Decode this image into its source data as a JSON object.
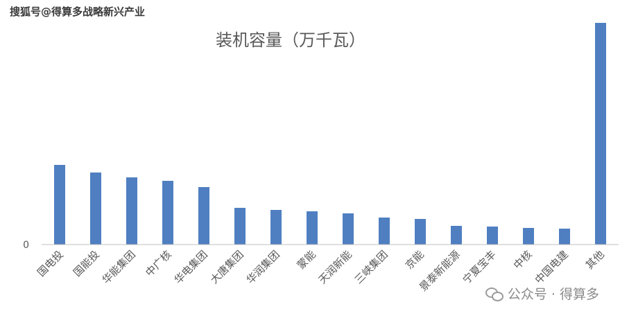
{
  "watermark": {
    "top_text": "搜狐号@得算多战略新兴产业",
    "bottom_text": "公众号 · 得算多",
    "icon": "wechat-icon"
  },
  "colors": {
    "bar": "#4F7FC1",
    "axis": "#bfbfbf",
    "title": "#595959",
    "tick": "#595959"
  },
  "chart_data": {
    "type": "bar",
    "title": "装机容量（万千瓦）",
    "xlabel": "",
    "ylabel": "",
    "ylim": [
      0,
      320
    ],
    "grid": false,
    "y_ticks": [
      {
        "value": 0,
        "label": "0"
      }
    ],
    "categories": [
      "国电投",
      "国能投",
      "华能集团",
      "中广核",
      "华电集团",
      "大唐集团",
      "华润集团",
      "蒙能",
      "天润新能",
      "三峡集团",
      "京能",
      "景泰新能源",
      "宁夏宝丰",
      "中核",
      "中国电建",
      "其他"
    ],
    "values": [
      115,
      104,
      97,
      92,
      83,
      53,
      50,
      48,
      45,
      39,
      37,
      27,
      26,
      24,
      23,
      320
    ]
  }
}
